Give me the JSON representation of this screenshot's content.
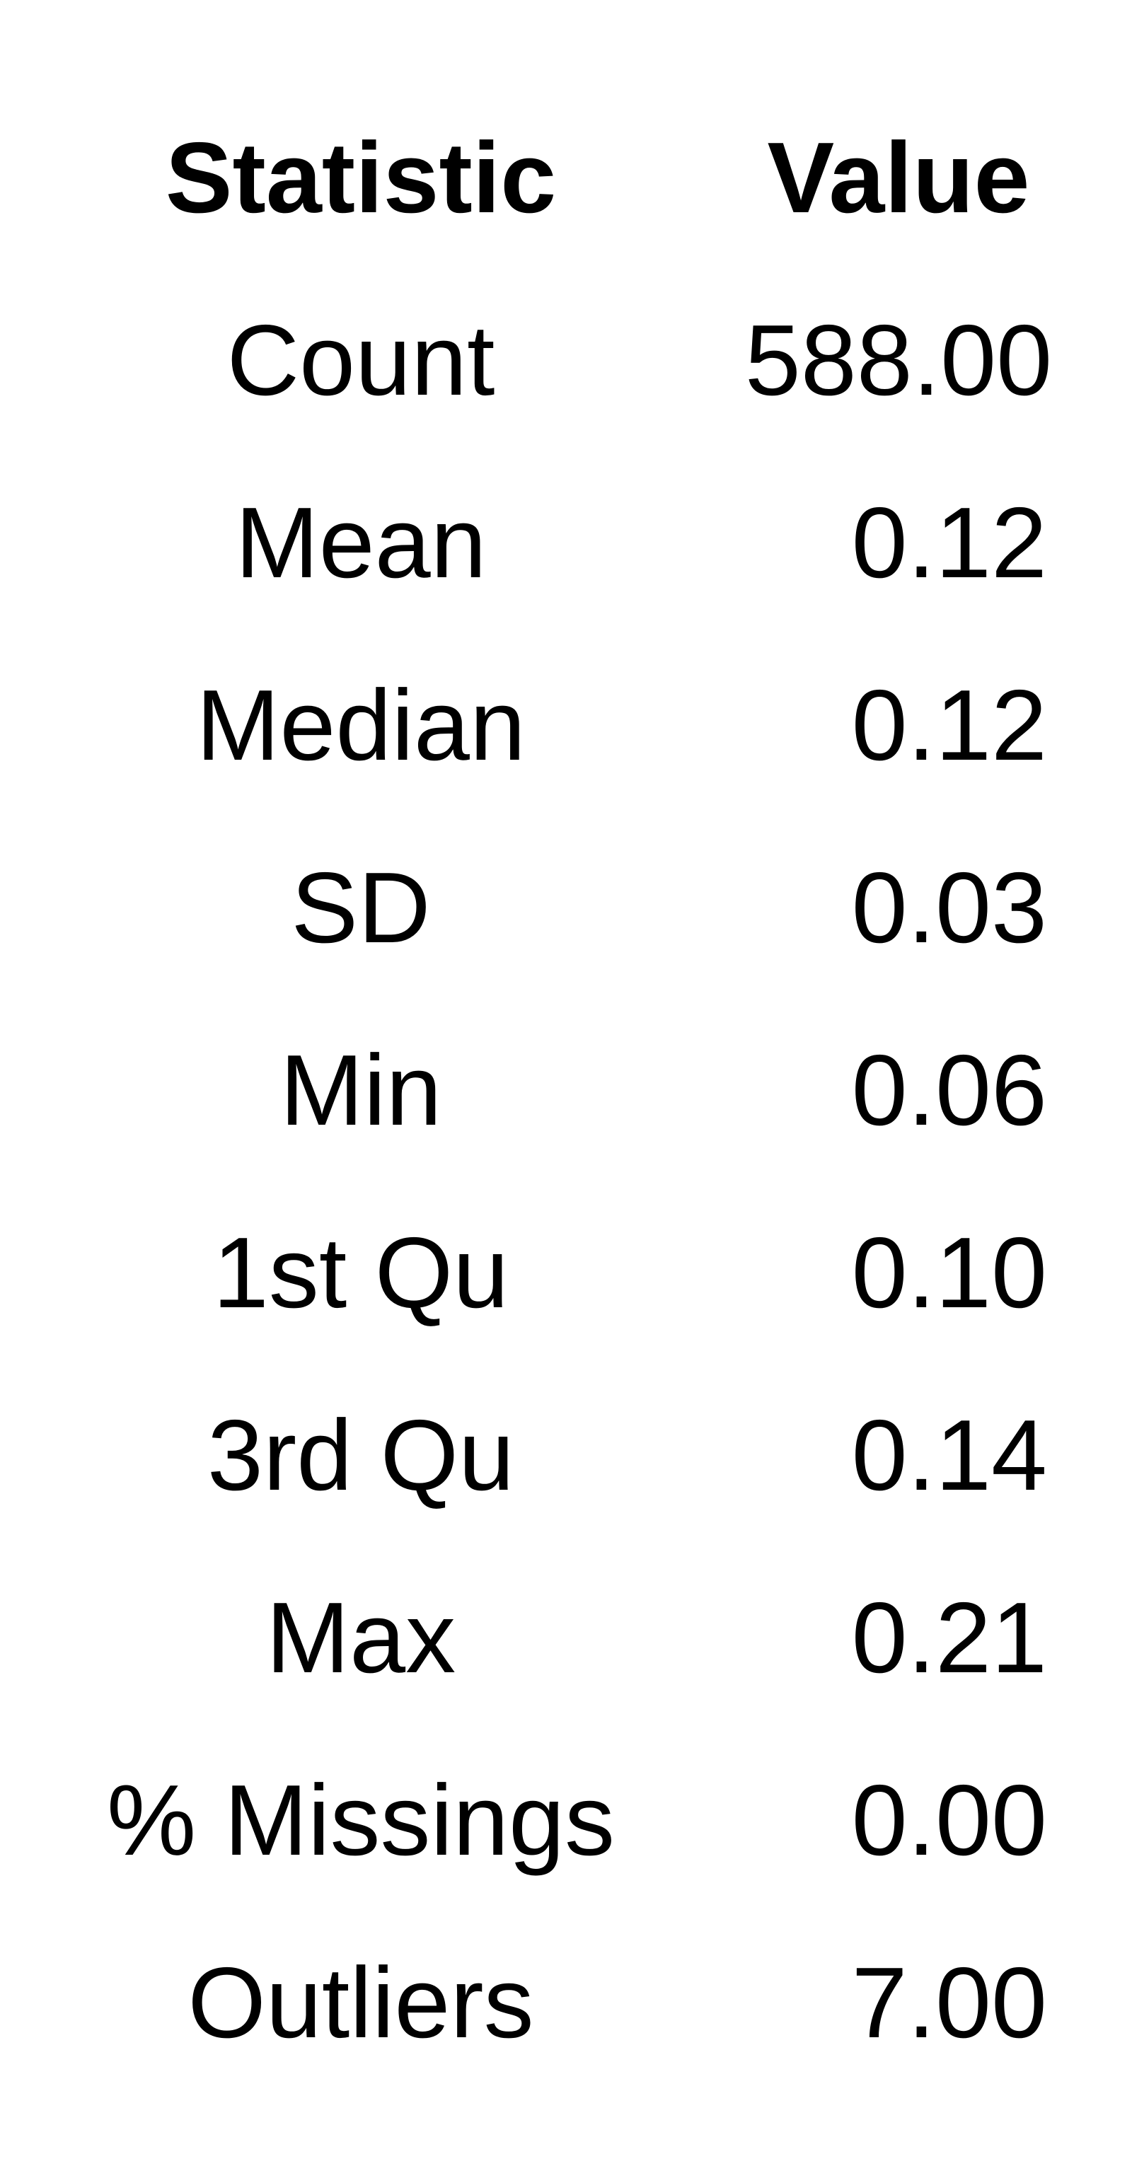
{
  "table": {
    "headers": {
      "statistic": "Statistic",
      "value": "Value"
    },
    "rows": [
      {
        "statistic": "Count",
        "value": "588.00"
      },
      {
        "statistic": "Mean",
        "value": "0.12"
      },
      {
        "statistic": "Median",
        "value": "0.12"
      },
      {
        "statistic": "SD",
        "value": "0.03"
      },
      {
        "statistic": "Min",
        "value": "0.06"
      },
      {
        "statistic": "1st Qu",
        "value": "0.10"
      },
      {
        "statistic": "3rd Qu",
        "value": "0.14"
      },
      {
        "statistic": "Max",
        "value": "0.21"
      },
      {
        "statistic": "% Missings",
        "value": "0.00"
      },
      {
        "statistic": "Outliers",
        "value": "7.00"
      }
    ]
  }
}
